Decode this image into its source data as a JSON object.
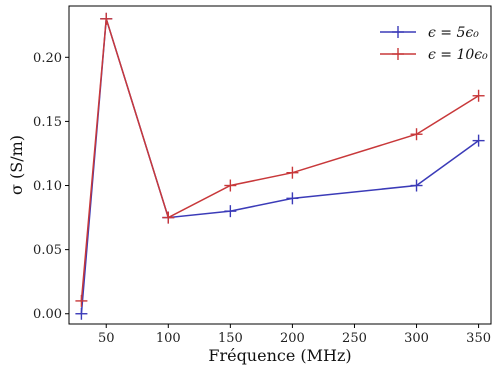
{
  "chart_data": {
    "type": "line",
    "xlabel": "Fréquence (MHz)",
    "ylabel": "σ (S/m)",
    "xlim": [
      20,
      360
    ],
    "ylim": [
      -0.008,
      0.24
    ],
    "xticks": [
      50,
      100,
      150,
      200,
      250,
      300,
      350
    ],
    "yticks": [
      0.0,
      0.05,
      0.1,
      0.15,
      0.2
    ],
    "xtick_labels": [
      "50",
      "100",
      "150",
      "200",
      "250",
      "300",
      "350"
    ],
    "ytick_labels": [
      "0.00",
      "0.05",
      "0.10",
      "0.15",
      "0.20"
    ],
    "grid": false,
    "legend_position": "top-right",
    "marker": "plus",
    "series": [
      {
        "name": "ϵ = 5ϵ₀",
        "color": "#3b3bb8",
        "x": [
          30,
          50,
          100,
          150,
          200,
          300,
          350
        ],
        "y": [
          0.0,
          0.23,
          0.075,
          0.08,
          0.09,
          0.1,
          0.135
        ]
      },
      {
        "name": "ϵ = 10ϵ₀",
        "color": "#c8383a",
        "x": [
          30,
          50,
          100,
          150,
          200,
          300,
          350
        ],
        "y": [
          0.01,
          0.23,
          0.075,
          0.1,
          0.11,
          0.14,
          0.17
        ]
      }
    ]
  }
}
